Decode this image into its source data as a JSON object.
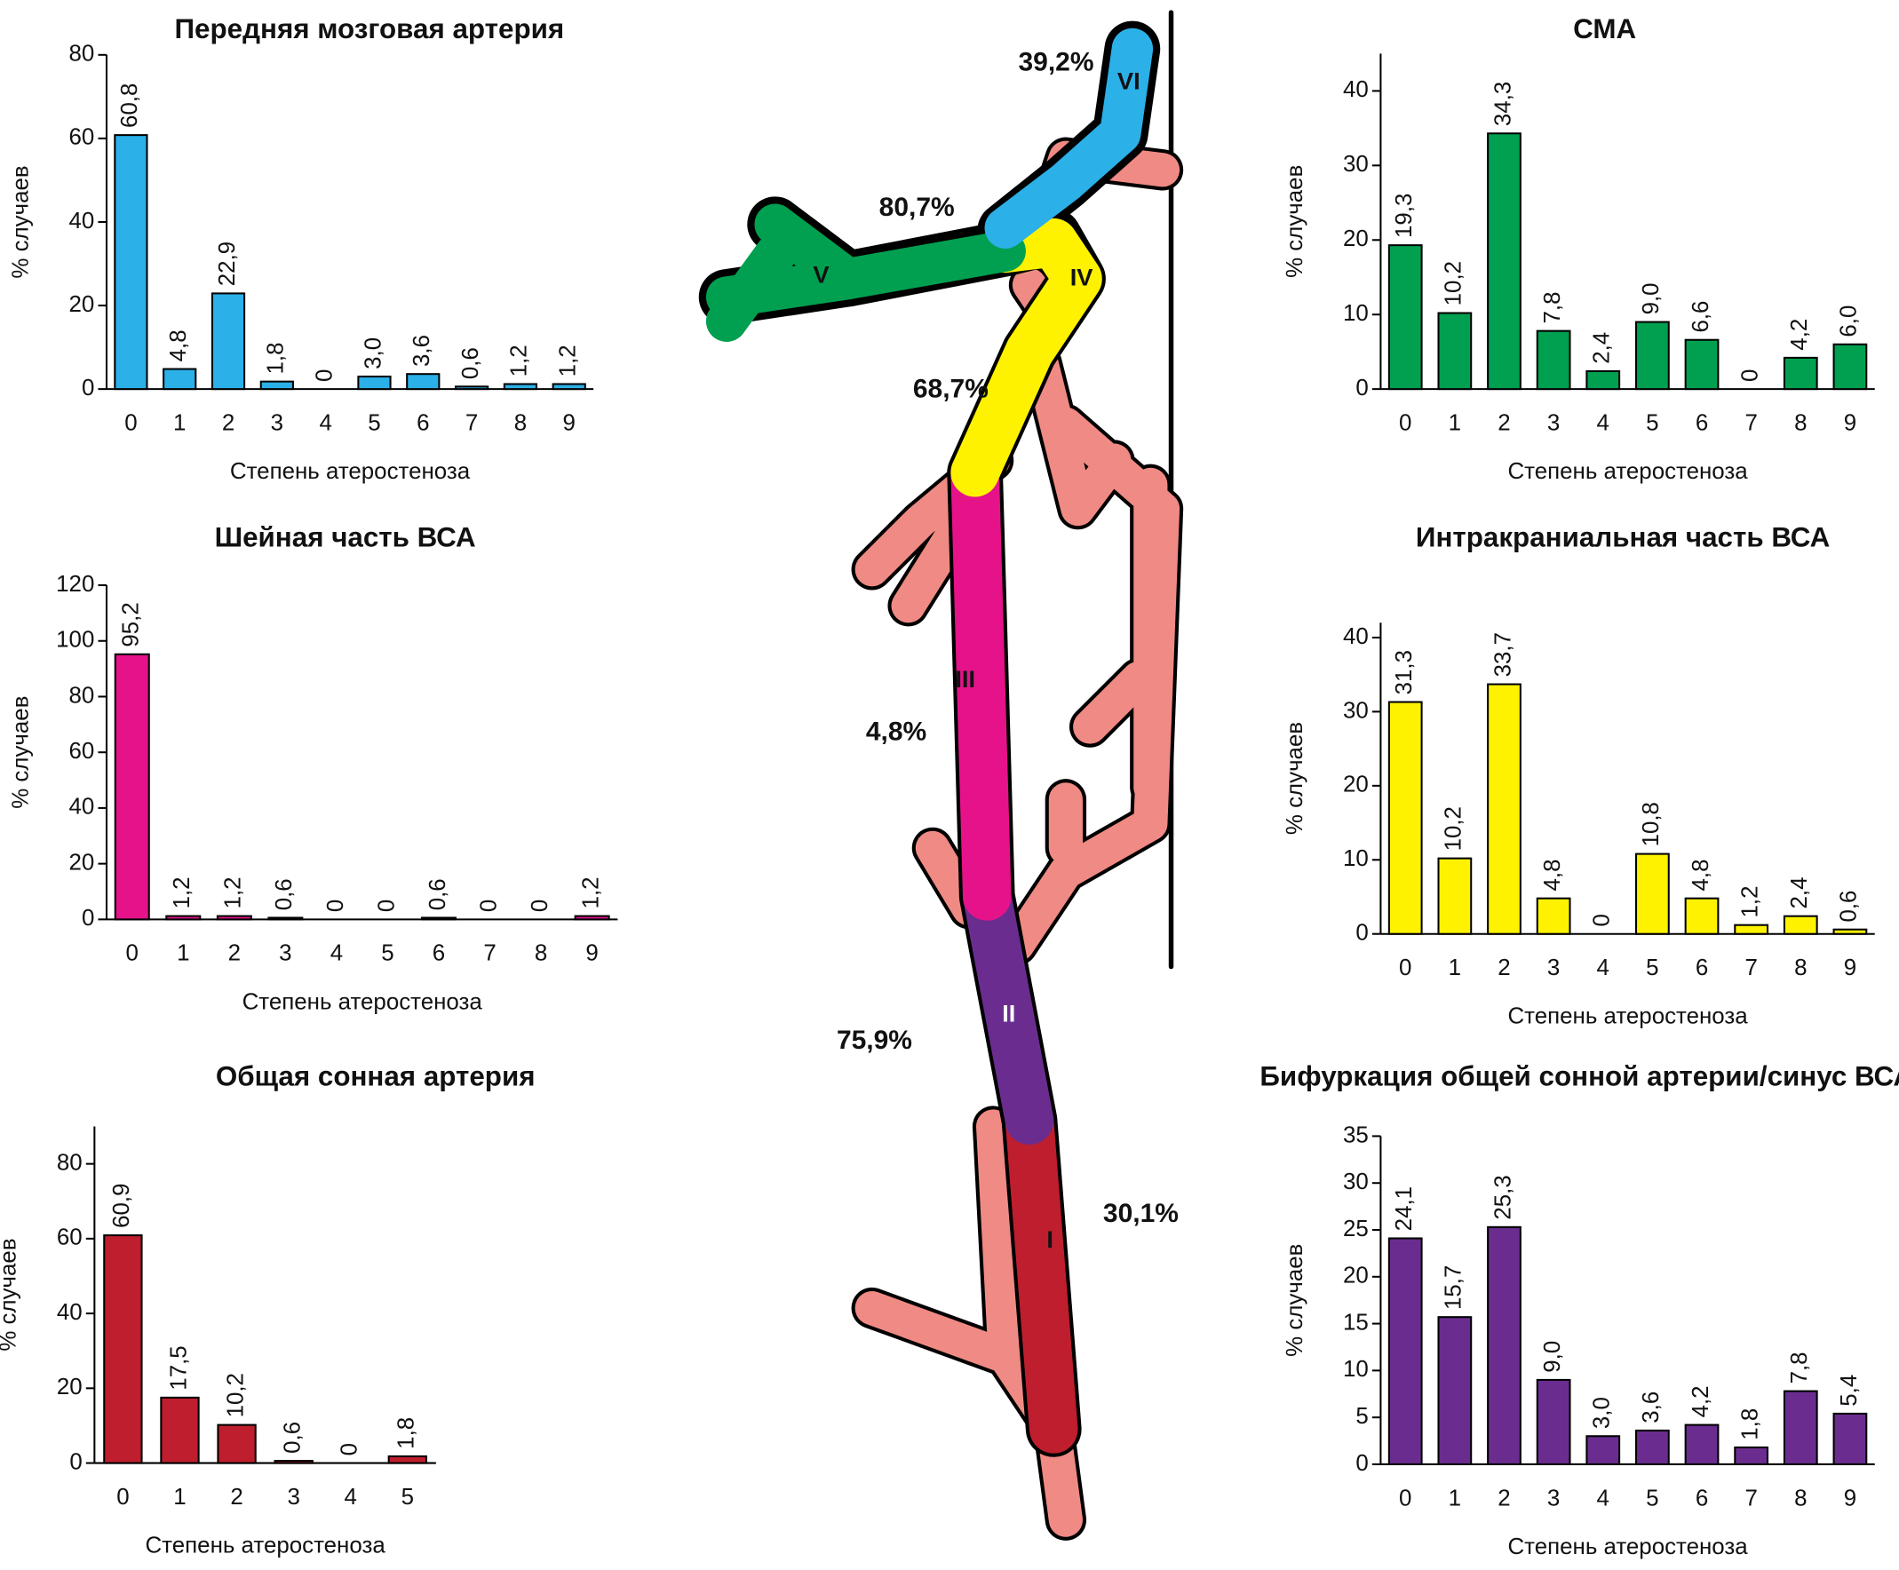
{
  "chart_data": [
    {
      "type": "bar",
      "title": "Передняя мозговая артерия",
      "color": "#2bb0e8",
      "categories": [
        "0",
        "1",
        "2",
        "3",
        "4",
        "5",
        "6",
        "7",
        "8",
        "9"
      ],
      "values": [
        60.8,
        4.8,
        22.9,
        1.8,
        0,
        3.0,
        3.6,
        0.6,
        1.2,
        1.2
      ],
      "value_labels": [
        "60,8",
        "4,8",
        "22,9",
        "1,8",
        "0",
        "3,0",
        "3,6",
        "0,6",
        "1,2",
        "1,2"
      ],
      "ylim": [
        0,
        80
      ],
      "yticks": [
        0,
        20,
        40,
        60,
        80
      ],
      "ylabel": "% случаев",
      "xlabel": "Степень атеростеноза"
    },
    {
      "type": "bar",
      "title": "Шейная часть ВСА",
      "color": "#e5128a",
      "categories": [
        "0",
        "1",
        "2",
        "3",
        "4",
        "5",
        "6",
        "7",
        "8",
        "9"
      ],
      "values": [
        95.2,
        1.2,
        1.2,
        0.6,
        0,
        0,
        0.6,
        0,
        0,
        1.2
      ],
      "value_labels": [
        "95,2",
        "1,2",
        "1,2",
        "0,6",
        "0",
        "0",
        "0,6",
        "0",
        "0",
        "1,2"
      ],
      "ylim": [
        0,
        120
      ],
      "yticks": [
        0,
        20,
        40,
        60,
        80,
        100,
        120
      ],
      "ylabel": "% случаев",
      "xlabel": "Степень атеростеноза"
    },
    {
      "type": "bar",
      "title": "Общая сонная артерия",
      "color": "#be1e2d",
      "categories": [
        "0",
        "1",
        "2",
        "3",
        "4",
        "5"
      ],
      "values": [
        60.9,
        17.5,
        10.2,
        0.6,
        0,
        1.8
      ],
      "value_labels": [
        "60,9",
        "17,5",
        "10,2",
        "0,6",
        "0",
        "1,8"
      ],
      "ylim": [
        0,
        90
      ],
      "yticks": [
        0,
        20,
        40,
        60,
        80
      ],
      "ylabel": "% случаев",
      "xlabel": "Степень атеростеноза"
    },
    {
      "type": "bar",
      "title": "СМА",
      "color": "#00a050",
      "categories": [
        "0",
        "1",
        "2",
        "3",
        "4",
        "5",
        "6",
        "7",
        "8",
        "9"
      ],
      "values": [
        19.3,
        10.2,
        34.3,
        7.8,
        2.4,
        9.0,
        6.6,
        0,
        4.2,
        6.0
      ],
      "value_labels": [
        "19,3",
        "10,2",
        "34,3",
        "7,8",
        "2,4",
        "9,0",
        "6,6",
        "0",
        "4,2",
        "6,0"
      ],
      "ylim": [
        0,
        45
      ],
      "yticks": [
        0,
        10,
        20,
        30,
        40
      ],
      "ylabel": "% случаев",
      "xlabel": "Степень атеростеноза"
    },
    {
      "type": "bar",
      "title": "Интракраниальная часть ВСА",
      "color": "#fff200",
      "categories": [
        "0",
        "1",
        "2",
        "3",
        "4",
        "5",
        "6",
        "7",
        "8",
        "9"
      ],
      "values": [
        31.3,
        10.2,
        33.7,
        4.8,
        0,
        10.8,
        4.8,
        1.2,
        2.4,
        0.6
      ],
      "value_labels": [
        "31,3",
        "10,2",
        "33,7",
        "4,8",
        "0",
        "10,8",
        "4,8",
        "1,2",
        "2,4",
        "0,6"
      ],
      "ylim": [
        0,
        42
      ],
      "yticks": [
        0,
        10,
        20,
        30,
        40
      ],
      "ylabel": "% случаев",
      "xlabel": "Степень атеростеноза"
    },
    {
      "type": "bar",
      "title": "Бифуркация общей сонной артерии/синус ВСА",
      "color": "#6a2d8f",
      "categories": [
        "0",
        "1",
        "2",
        "3",
        "4",
        "5",
        "6",
        "7",
        "8",
        "9"
      ],
      "values": [
        24.1,
        15.7,
        25.3,
        9.0,
        3.0,
        3.6,
        4.2,
        1.8,
        7.8,
        5.4
      ],
      "value_labels": [
        "24,1",
        "15,7",
        "25,3",
        "9,0",
        "3,0",
        "3,6",
        "4,2",
        "1,8",
        "7,8",
        "5,4"
      ],
      "ylim": [
        0,
        35
      ],
      "yticks": [
        0,
        5,
        10,
        15,
        20,
        25,
        30,
        35
      ],
      "ylabel": "% случаев",
      "xlabel": "Степень атеростеноза"
    }
  ],
  "diagram": {
    "segments": [
      {
        "label": "I",
        "percent": "30,1%"
      },
      {
        "label": "II",
        "percent": "75,9%"
      },
      {
        "label": "III",
        "percent": "4,8%"
      },
      {
        "label": "IV",
        "percent": "68,7%"
      },
      {
        "label": "V",
        "percent": "80,7%"
      },
      {
        "label": "VI",
        "percent": "39,2%"
      }
    ]
  }
}
